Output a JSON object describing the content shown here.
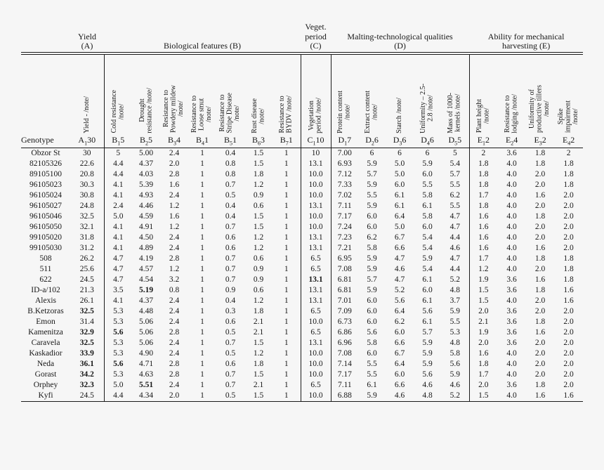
{
  "colors": {
    "background": "#f6f6f6",
    "text": "#171717",
    "rule": "#1b1b1b"
  },
  "table": {
    "header": {
      "genotype_label": "Genotype",
      "groups": [
        {
          "label": "Yield\n(A)",
          "span": 1
        },
        {
          "label": "Biological features (B)",
          "span": 7
        },
        {
          "label": "Veget.\nperiod\n(C)",
          "span": 1
        },
        {
          "label": "Malting-technological qualities\n(D)",
          "span": 5
        },
        {
          "label": "Ability for mechanical\nharvesting (E)",
          "span": 4
        }
      ],
      "columns": [
        {
          "label": "Yield - /note/",
          "code": {
            "letter": "A",
            "sub": "1",
            "max": "30"
          }
        },
        {
          "label": "Cold resistance\n/note/",
          "code": {
            "letter": "B",
            "sub": "1",
            "max": "5"
          }
        },
        {
          "label": "Drought\nresistance /note/",
          "code": {
            "letter": "B",
            "sub": "2",
            "max": "5"
          }
        },
        {
          "label": "Resistance to\nPowdery mildew\n/note/",
          "code": {
            "letter": "B",
            "sub": "3",
            "max": "4"
          }
        },
        {
          "label": "Resistance to\nLoose smut\n/note/",
          "code": {
            "letter": "B",
            "sub": "4",
            "max": "1"
          }
        },
        {
          "label": "Resistance to\nStripe Disease\n/note/",
          "code": {
            "letter": "B",
            "sub": "5",
            "max": "1"
          }
        },
        {
          "label": "Rust disease\n/note/",
          "code": {
            "letter": "B",
            "sub": "6",
            "max": "3"
          }
        },
        {
          "label": "Resistance to\nBYDV /note/",
          "code": {
            "letter": "B",
            "sub": "7",
            "max": "1"
          }
        },
        {
          "label": "Vegetation\nperiod /note/",
          "code": {
            "letter": "C",
            "sub": "1",
            "max": "10"
          }
        },
        {
          "label": "Protein content\n/note/",
          "code": {
            "letter": "D",
            "sub": "1",
            "max": "7"
          }
        },
        {
          "label": "Extract content\n/note/",
          "code": {
            "letter": "D",
            "sub": "2",
            "max": "6"
          }
        },
        {
          "label": "Starch /note/",
          "code": {
            "letter": "D",
            "sub": "3",
            "max": "6"
          }
        },
        {
          "label": "Uniformity – 2.5-\n2.8 /note/",
          "code": {
            "letter": "D",
            "sub": "4",
            "max": "6"
          }
        },
        {
          "label": "Mass of 1000-\nkernels /note/",
          "code": {
            "letter": "D",
            "sub": "5",
            "max": "5"
          }
        },
        {
          "label": "Plant height\n/note/",
          "code": {
            "letter": "E",
            "sub": "1",
            "max": "2"
          }
        },
        {
          "label": "Resistance to\nlodging /note/",
          "code": {
            "letter": "E",
            "sub": "2",
            "max": "4"
          }
        },
        {
          "label": "Uniformity of\nproductive tillers\n/note/",
          "code": {
            "letter": "E",
            "sub": "3",
            "max": "2"
          }
        },
        {
          "label": "Spike\nimpairment\n/note/",
          "code": {
            "letter": "E",
            "sub": "4",
            "max": "2"
          }
        }
      ]
    },
    "rows": [
      {
        "genotype": "Obzor St",
        "values": [
          "30",
          "5",
          "5.00",
          "2.4",
          "1",
          "0.4",
          "1.5",
          "1",
          "10",
          "7.00",
          "6",
          "6",
          "6",
          "5",
          "2",
          "3.6",
          "1.8",
          "2"
        ],
        "bold": []
      },
      {
        "genotype": "82105326",
        "values": [
          "22.6",
          "4.4",
          "4.37",
          "2.0",
          "1",
          "0.8",
          "1.5",
          "1",
          "13.1",
          "6.93",
          "5.9",
          "5.0",
          "5.9",
          "5.4",
          "1.8",
          "4.0",
          "1.8",
          "1.8"
        ],
        "bold": []
      },
      {
        "genotype": "89105100",
        "values": [
          "20.8",
          "4.4",
          "4.03",
          "2.8",
          "1",
          "0.8",
          "1.8",
          "1",
          "10.0",
          "7.12",
          "5.7",
          "5.0",
          "6.0",
          "5.7",
          "1.8",
          "4.0",
          "2.0",
          "1.8"
        ],
        "bold": []
      },
      {
        "genotype": "96105023",
        "values": [
          "30.3",
          "4.1",
          "5.39",
          "1.6",
          "1",
          "0.7",
          "1.2",
          "1",
          "10.0",
          "7.33",
          "5.9",
          "6.0",
          "5.5",
          "5.5",
          "1.8",
          "4.0",
          "2.0",
          "1.8"
        ],
        "bold": []
      },
      {
        "genotype": "96105024",
        "values": [
          "30.8",
          "4.1",
          "4.93",
          "2.4",
          "1",
          "0.5",
          "0.9",
          "1",
          "10.0",
          "7.02",
          "5.5",
          "6.1",
          "5.8",
          "6.2",
          "1.7",
          "4.0",
          "1.6",
          "2.0"
        ],
        "bold": []
      },
      {
        "genotype": "96105027",
        "values": [
          "24.8",
          "2.4",
          "4.46",
          "1.2",
          "1",
          "0.4",
          "0.6",
          "1",
          "13.1",
          "7.11",
          "5.9",
          "6.1",
          "6.1",
          "5.5",
          "1.8",
          "4.0",
          "2.0",
          "2.0"
        ],
        "bold": []
      },
      {
        "genotype": "96105046",
        "values": [
          "32.5",
          "5.0",
          "4.59",
          "1.6",
          "1",
          "0.4",
          "1.5",
          "1",
          "10.0",
          "7.17",
          "6.0",
          "6.4",
          "5.8",
          "4.7",
          "1.6",
          "4.0",
          "1.8",
          "2.0"
        ],
        "bold": []
      },
      {
        "genotype": "96105050",
        "values": [
          "32.1",
          "4.1",
          "4.91",
          "1.2",
          "1",
          "0.7",
          "1.5",
          "1",
          "10.0",
          "7.24",
          "6.0",
          "5.0",
          "6.0",
          "4.7",
          "1.6",
          "4.0",
          "2.0",
          "2.0"
        ],
        "bold": []
      },
      {
        "genotype": "99105020",
        "values": [
          "31.8",
          "4.1",
          "4.50",
          "2.4",
          "1",
          "0.6",
          "1.2",
          "1",
          "13.1",
          "7.23",
          "6.2",
          "6.7",
          "5.4",
          "4.4",
          "1.6",
          "4.0",
          "2.0",
          "2.0"
        ],
        "bold": []
      },
      {
        "genotype": "99105030",
        "values": [
          "31.2",
          "4.1",
          "4.89",
          "2.4",
          "1",
          "0.6",
          "1.2",
          "1",
          "13.1",
          "7.21",
          "5.8",
          "6.6",
          "5.4",
          "4.6",
          "1.6",
          "4.0",
          "1.6",
          "2.0"
        ],
        "bold": []
      },
      {
        "genotype": "508",
        "values": [
          "26.2",
          "4.7",
          "4.19",
          "2.8",
          "1",
          "0.7",
          "0.6",
          "1",
          "6.5",
          "6.95",
          "5.9",
          "4.7",
          "5.9",
          "4.7",
          "1.7",
          "4.0",
          "1.8",
          "1.8"
        ],
        "bold": []
      },
      {
        "genotype": "511",
        "values": [
          "25.6",
          "4.7",
          "4.57",
          "1.2",
          "1",
          "0.7",
          "0.9",
          "1",
          "6.5",
          "7.08",
          "5.9",
          "4.6",
          "5.4",
          "4.4",
          "1.2",
          "4.0",
          "2.0",
          "1.8"
        ],
        "bold": []
      },
      {
        "genotype": "622",
        "values": [
          "24.5",
          "4.7",
          "4.54",
          "3.2",
          "1",
          "0.7",
          "0.9",
          "1",
          "13.1",
          "6.81",
          "5.7",
          "4.7",
          "6.1",
          "5.2",
          "1.9",
          "3.6",
          "1.6",
          "1.8"
        ],
        "bold": [
          8
        ]
      },
      {
        "genotype": "ID-a/102",
        "values": [
          "21.3",
          "3.5",
          "5.19",
          "0.8",
          "1",
          "0.9",
          "0.6",
          "1",
          "13.1",
          "6.81",
          "5.9",
          "5.2",
          "6.0",
          "4.8",
          "1.5",
          "3.6",
          "1.8",
          "1.6"
        ],
        "bold": [
          2
        ]
      },
      {
        "genotype": "Alexis",
        "values": [
          "26.1",
          "4.1",
          "4.37",
          "2.4",
          "1",
          "0.4",
          "1.2",
          "1",
          "13.1",
          "7.01",
          "6.0",
          "5.6",
          "6.1",
          "3.7",
          "1.5",
          "4.0",
          "2.0",
          "1.6"
        ],
        "bold": []
      },
      {
        "genotype": "B.Ketzoras",
        "values": [
          "32.5",
          "5.3",
          "4.48",
          "2.4",
          "1",
          "0.3",
          "1.8",
          "1",
          "6.5",
          "7.09",
          "6.0",
          "6.4",
          "5.6",
          "5.9",
          "2.0",
          "3.6",
          "2.0",
          "2.0"
        ],
        "bold": [
          0
        ]
      },
      {
        "genotype": "Emon",
        "values": [
          "31.4",
          "5.3",
          "5.06",
          "2.4",
          "1",
          "0.6",
          "2.1",
          "1",
          "10.0",
          "6.73",
          "6.0",
          "6.2",
          "6.1",
          "5.5",
          "2.1",
          "3.6",
          "1.8",
          "2.0"
        ],
        "bold": []
      },
      {
        "genotype": "Kamenitza",
        "values": [
          "32.9",
          "5.6",
          "5.06",
          "2.8",
          "1",
          "0.5",
          "2.1",
          "1",
          "6.5",
          "6.86",
          "5.6",
          "6.0",
          "5.7",
          "5.3",
          "1.9",
          "3.6",
          "1.6",
          "2.0"
        ],
        "bold": [
          0,
          1
        ]
      },
      {
        "genotype": "Caravela",
        "values": [
          "32.5",
          "5.3",
          "5.06",
          "2.4",
          "1",
          "0.7",
          "1.5",
          "1",
          "13.1",
          "6.96",
          "5.8",
          "6.6",
          "5.9",
          "4.8",
          "2.0",
          "3.6",
          "2.0",
          "2.0"
        ],
        "bold": [
          0
        ]
      },
      {
        "genotype": "Kaskadior",
        "values": [
          "33.9",
          "5.3",
          "4.90",
          "2.4",
          "1",
          "0.5",
          "1.2",
          "1",
          "10.0",
          "7.08",
          "6.0",
          "6.7",
          "5.9",
          "5.8",
          "1.6",
          "4.0",
          "2.0",
          "2.0"
        ],
        "bold": [
          0
        ]
      },
      {
        "genotype": "Neda",
        "values": [
          "36.1",
          "5.6",
          "4.71",
          "2.8",
          "1",
          "0.6",
          "1.8",
          "1",
          "10.0",
          "7.14",
          "5.5",
          "6.4",
          "5.9",
          "5.6",
          "1.8",
          "4.0",
          "2.0",
          "2.0"
        ],
        "bold": [
          0,
          1
        ]
      },
      {
        "genotype": "Gorast",
        "values": [
          "34.2",
          "5.3",
          "4.63",
          "2.8",
          "1",
          "0.7",
          "1.5",
          "1",
          "10.0",
          "7.17",
          "5.5",
          "6.0",
          "5.6",
          "5.9",
          "1.7",
          "4.0",
          "2.0",
          "2.0"
        ],
        "bold": [
          0
        ]
      },
      {
        "genotype": "Orphey",
        "values": [
          "32.3",
          "5.0",
          "5.51",
          "2.4",
          "1",
          "0.7",
          "2.1",
          "1",
          "6.5",
          "7.11",
          "6.1",
          "6.6",
          "4.6",
          "4.6",
          "2.0",
          "3.6",
          "1.8",
          "2.0"
        ],
        "bold": [
          0,
          2
        ]
      },
      {
        "genotype": "Kyfi",
        "values": [
          "24.5",
          "4.4",
          "4.34",
          "2.0",
          "1",
          "0.5",
          "1.5",
          "1",
          "10.0",
          "6.88",
          "5.9",
          "4.6",
          "4.8",
          "5.2",
          "1.5",
          "4.0",
          "1.6",
          "1.6"
        ],
        "bold": []
      }
    ]
  }
}
